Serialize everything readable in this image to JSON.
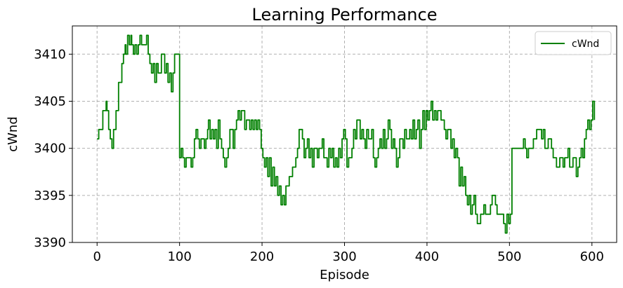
{
  "chart_data": {
    "type": "line",
    "title": "Learning Performance",
    "xlabel": "Episode",
    "ylabel": "cWnd",
    "xlim": [
      -30,
      630
    ],
    "ylim": [
      3390,
      3413
    ],
    "xticks": [
      0,
      100,
      200,
      300,
      400,
      500,
      600
    ],
    "yticks": [
      3390,
      3395,
      3400,
      3405,
      3410
    ],
    "grid": true,
    "legend_position": "top-right",
    "series": [
      {
        "name": "cWnd",
        "color": "#008000",
        "points": [
          [
            0,
            3401
          ],
          [
            2,
            3402
          ],
          [
            5,
            3402
          ],
          [
            7,
            3404
          ],
          [
            10,
            3404
          ],
          [
            11,
            3405
          ],
          [
            12,
            3404
          ],
          [
            14,
            3402
          ],
          [
            16,
            3401
          ],
          [
            18,
            3400
          ],
          [
            20,
            3402
          ],
          [
            23,
            3404
          ],
          [
            26,
            3407
          ],
          [
            28,
            3407
          ],
          [
            30,
            3409
          ],
          [
            32,
            3410
          ],
          [
            34,
            3411
          ],
          [
            35,
            3410
          ],
          [
            37,
            3412
          ],
          [
            39,
            3411
          ],
          [
            41,
            3412
          ],
          [
            42,
            3411
          ],
          [
            44,
            3410
          ],
          [
            46,
            3411
          ],
          [
            48,
            3410
          ],
          [
            50,
            3411
          ],
          [
            52,
            3412
          ],
          [
            54,
            3411
          ],
          [
            58,
            3411
          ],
          [
            60,
            3412
          ],
          [
            62,
            3410
          ],
          [
            64,
            3409
          ],
          [
            66,
            3408
          ],
          [
            68,
            3409
          ],
          [
            70,
            3407
          ],
          [
            72,
            3409
          ],
          [
            74,
            3408
          ],
          [
            76,
            3408
          ],
          [
            78,
            3410
          ],
          [
            80,
            3410
          ],
          [
            82,
            3408
          ],
          [
            84,
            3409
          ],
          [
            86,
            3407
          ],
          [
            88,
            3408
          ],
          [
            90,
            3406
          ],
          [
            92,
            3408
          ],
          [
            94,
            3410
          ],
          [
            96,
            3410
          ],
          [
            99,
            3410
          ],
          [
            100,
            3399
          ],
          [
            102,
            3400
          ],
          [
            104,
            3399
          ],
          [
            106,
            3398
          ],
          [
            108,
            3399
          ],
          [
            112,
            3399
          ],
          [
            114,
            3398
          ],
          [
            116,
            3399
          ],
          [
            118,
            3401
          ],
          [
            120,
            3402
          ],
          [
            122,
            3401
          ],
          [
            124,
            3400
          ],
          [
            126,
            3401
          ],
          [
            128,
            3401
          ],
          [
            130,
            3400
          ],
          [
            132,
            3401
          ],
          [
            134,
            3402
          ],
          [
            135,
            3403
          ],
          [
            137,
            3401
          ],
          [
            139,
            3402
          ],
          [
            141,
            3401
          ],
          [
            143,
            3402
          ],
          [
            145,
            3400
          ],
          [
            147,
            3403
          ],
          [
            149,
            3401
          ],
          [
            151,
            3400
          ],
          [
            153,
            3399
          ],
          [
            155,
            3398
          ],
          [
            157,
            3399
          ],
          [
            159,
            3400
          ],
          [
            161,
            3402
          ],
          [
            163,
            3402
          ],
          [
            165,
            3400
          ],
          [
            167,
            3402
          ],
          [
            169,
            3403
          ],
          [
            171,
            3404
          ],
          [
            173,
            3403
          ],
          [
            175,
            3404
          ],
          [
            177,
            3404
          ],
          [
            179,
            3402
          ],
          [
            181,
            3403
          ],
          [
            183,
            3403
          ],
          [
            185,
            3402
          ],
          [
            187,
            3403
          ],
          [
            189,
            3402
          ],
          [
            191,
            3403
          ],
          [
            193,
            3402
          ],
          [
            195,
            3403
          ],
          [
            197,
            3402
          ],
          [
            199,
            3400
          ],
          [
            201,
            3399
          ],
          [
            203,
            3398
          ],
          [
            205,
            3399
          ],
          [
            207,
            3397
          ],
          [
            209,
            3399
          ],
          [
            211,
            3396
          ],
          [
            213,
            3398
          ],
          [
            215,
            3396
          ],
          [
            217,
            3397
          ],
          [
            219,
            3395
          ],
          [
            221,
            3396
          ],
          [
            223,
            3394
          ],
          [
            225,
            3395
          ],
          [
            227,
            3394
          ],
          [
            229,
            3396
          ],
          [
            231,
            3396
          ],
          [
            233,
            3397
          ],
          [
            235,
            3397
          ],
          [
            237,
            3398
          ],
          [
            239,
            3398
          ],
          [
            241,
            3399
          ],
          [
            243,
            3400
          ],
          [
            245,
            3402
          ],
          [
            247,
            3402
          ],
          [
            249,
            3401
          ],
          [
            251,
            3399
          ],
          [
            253,
            3400
          ],
          [
            255,
            3401
          ],
          [
            257,
            3399
          ],
          [
            259,
            3400
          ],
          [
            261,
            3398
          ],
          [
            263,
            3400
          ],
          [
            265,
            3400
          ],
          [
            267,
            3399
          ],
          [
            269,
            3400
          ],
          [
            271,
            3400
          ],
          [
            273,
            3401
          ],
          [
            275,
            3399
          ],
          [
            277,
            3399
          ],
          [
            279,
            3398
          ],
          [
            281,
            3400
          ],
          [
            283,
            3399
          ],
          [
            285,
            3400
          ],
          [
            287,
            3398
          ],
          [
            289,
            3399
          ],
          [
            291,
            3398
          ],
          [
            293,
            3400
          ],
          [
            295,
            3399
          ],
          [
            297,
            3401
          ],
          [
            299,
            3402
          ],
          [
            301,
            3401
          ],
          [
            303,
            3398
          ],
          [
            305,
            3399
          ],
          [
            307,
            3399
          ],
          [
            309,
            3400
          ],
          [
            311,
            3402
          ],
          [
            313,
            3401
          ],
          [
            315,
            3403
          ],
          [
            317,
            3403
          ],
          [
            319,
            3401
          ],
          [
            321,
            3402
          ],
          [
            323,
            3401
          ],
          [
            325,
            3400
          ],
          [
            327,
            3402
          ],
          [
            329,
            3401
          ],
          [
            331,
            3401
          ],
          [
            333,
            3402
          ],
          [
            335,
            3399
          ],
          [
            337,
            3398
          ],
          [
            339,
            3399
          ],
          [
            341,
            3400
          ],
          [
            343,
            3401
          ],
          [
            345,
            3400
          ],
          [
            347,
            3402
          ],
          [
            349,
            3400
          ],
          [
            351,
            3401
          ],
          [
            353,
            3403
          ],
          [
            355,
            3402
          ],
          [
            357,
            3400
          ],
          [
            359,
            3401
          ],
          [
            361,
            3400
          ],
          [
            363,
            3398
          ],
          [
            365,
            3399
          ],
          [
            367,
            3401
          ],
          [
            369,
            3401
          ],
          [
            371,
            3400
          ],
          [
            373,
            3402
          ],
          [
            375,
            3401
          ],
          [
            377,
            3401
          ],
          [
            379,
            3402
          ],
          [
            381,
            3401
          ],
          [
            383,
            3403
          ],
          [
            385,
            3401
          ],
          [
            387,
            3402
          ],
          [
            389,
            3403
          ],
          [
            391,
            3400
          ],
          [
            393,
            3402
          ],
          [
            395,
            3404
          ],
          [
            397,
            3402
          ],
          [
            399,
            3404
          ],
          [
            401,
            3403
          ],
          [
            403,
            3404
          ],
          [
            405,
            3405
          ],
          [
            407,
            3403
          ],
          [
            409,
            3404
          ],
          [
            411,
            3403
          ],
          [
            413,
            3404
          ],
          [
            415,
            3404
          ],
          [
            417,
            3403
          ],
          [
            419,
            3403
          ],
          [
            421,
            3402
          ],
          [
            423,
            3401
          ],
          [
            425,
            3402
          ],
          [
            427,
            3402
          ],
          [
            429,
            3400
          ],
          [
            431,
            3401
          ],
          [
            433,
            3399
          ],
          [
            435,
            3400
          ],
          [
            437,
            3399
          ],
          [
            439,
            3396
          ],
          [
            441,
            3398
          ],
          [
            443,
            3396
          ],
          [
            445,
            3397
          ],
          [
            447,
            3395
          ],
          [
            449,
            3394
          ],
          [
            451,
            3395
          ],
          [
            453,
            3393
          ],
          [
            455,
            3394
          ],
          [
            457,
            3395
          ],
          [
            459,
            3393
          ],
          [
            461,
            3392
          ],
          [
            463,
            3392
          ],
          [
            465,
            3393
          ],
          [
            467,
            3393
          ],
          [
            469,
            3394
          ],
          [
            471,
            3393
          ],
          [
            473,
            3393
          ],
          [
            475,
            3393
          ],
          [
            477,
            3394
          ],
          [
            479,
            3395
          ],
          [
            481,
            3395
          ],
          [
            483,
            3394
          ],
          [
            485,
            3393
          ],
          [
            487,
            3393
          ],
          [
            489,
            3393
          ],
          [
            491,
            3393
          ],
          [
            493,
            3392
          ],
          [
            495,
            3391
          ],
          [
            497,
            3393
          ],
          [
            499,
            3392
          ],
          [
            501,
            3393
          ],
          [
            503,
            3400
          ],
          [
            505,
            3400
          ],
          [
            507,
            3400
          ],
          [
            509,
            3400
          ],
          [
            511,
            3400
          ],
          [
            513,
            3400
          ],
          [
            515,
            3400
          ],
          [
            517,
            3401
          ],
          [
            519,
            3400
          ],
          [
            521,
            3399
          ],
          [
            523,
            3400
          ],
          [
            525,
            3400
          ],
          [
            527,
            3400
          ],
          [
            529,
            3401
          ],
          [
            531,
            3401
          ],
          [
            533,
            3402
          ],
          [
            535,
            3402
          ],
          [
            537,
            3402
          ],
          [
            539,
            3401
          ],
          [
            541,
            3402
          ],
          [
            543,
            3400
          ],
          [
            545,
            3400
          ],
          [
            547,
            3401
          ],
          [
            549,
            3401
          ],
          [
            551,
            3400
          ],
          [
            553,
            3399
          ],
          [
            555,
            3399
          ],
          [
            557,
            3398
          ],
          [
            559,
            3398
          ],
          [
            561,
            3399
          ],
          [
            563,
            3399
          ],
          [
            565,
            3398
          ],
          [
            567,
            3399
          ],
          [
            569,
            3399
          ],
          [
            571,
            3400
          ],
          [
            573,
            3398
          ],
          [
            575,
            3398
          ],
          [
            577,
            3399
          ],
          [
            579,
            3399
          ],
          [
            581,
            3397
          ],
          [
            583,
            3398
          ],
          [
            585,
            3399
          ],
          [
            587,
            3400
          ],
          [
            589,
            3399
          ],
          [
            591,
            3401
          ],
          [
            593,
            3402
          ],
          [
            595,
            3403
          ],
          [
            597,
            3402
          ],
          [
            599,
            3403
          ],
          [
            601,
            3405
          ],
          [
            603,
            3403
          ]
        ]
      }
    ]
  }
}
